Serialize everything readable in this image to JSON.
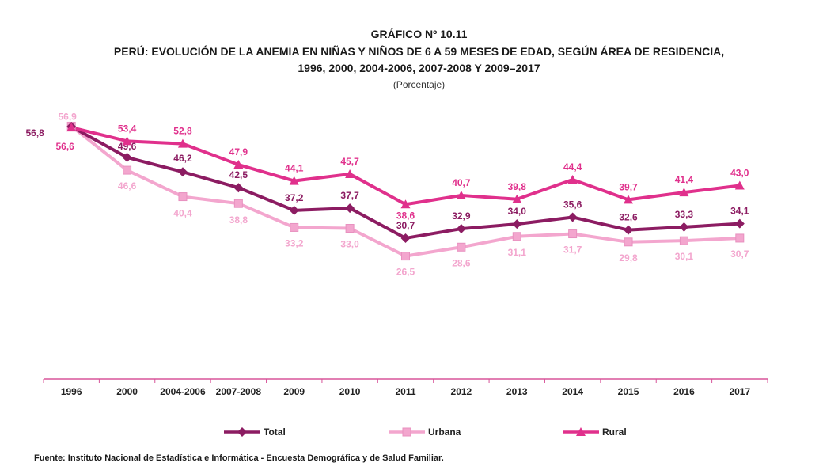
{
  "chart_data": {
    "type": "line",
    "title": "GRÁFICO Nº 10.11",
    "subtitle_line1": "PERÚ: EVOLUCIÓN DE LA ANEMIA EN NIÑAS Y NIÑOS DE 6 A 59 MESES DE EDAD, SEGÚN ÁREA DE RESIDENCIA,",
    "subtitle_line2": "1996, 2000, 2004-2006, 2007-2008 Y 2009–2017",
    "unit": "(Porcentaje)",
    "categories": [
      "1996",
      "2000",
      "2004-2006",
      "2007-2008",
      "2009",
      "2010",
      "2011",
      "2012",
      "2013",
      "2014",
      "2015",
      "2016",
      "2017"
    ],
    "series": [
      {
        "name": "Total",
        "color": "#8c1c62",
        "marker": "diamond",
        "values": [
          56.8,
          49.6,
          46.2,
          42.5,
          37.2,
          37.7,
          30.7,
          32.9,
          34.0,
          35.6,
          32.6,
          33.3,
          34.1
        ],
        "labels": [
          "56,8",
          "49,6",
          "46,2",
          "42,5",
          "37,2",
          "37,7",
          "30,7",
          "32,9",
          "34,0",
          "35,6",
          "32,6",
          "33,3",
          "34,1"
        ]
      },
      {
        "name": "Urbana",
        "color": "#f3a6ce",
        "marker": "square",
        "values": [
          56.9,
          46.6,
          40.4,
          38.8,
          33.2,
          33.0,
          26.5,
          28.6,
          31.1,
          31.7,
          29.8,
          30.1,
          30.7
        ],
        "labels": [
          "56,9",
          "46,6",
          "40,4",
          "38,8",
          "33,2",
          "33,0",
          "26,5",
          "28,6",
          "31,1",
          "31,7",
          "29,8",
          "30,1",
          "30,7"
        ]
      },
      {
        "name": "Rural",
        "color": "#e0308c",
        "marker": "triangle",
        "values": [
          56.6,
          53.4,
          52.8,
          47.9,
          44.1,
          45.7,
          38.6,
          40.7,
          39.8,
          44.4,
          39.7,
          41.4,
          43.0
        ],
        "labels": [
          "56,6",
          "53,4",
          "52,8",
          "47,9",
          "44,1",
          "45,7",
          "38,6",
          "40,7",
          "39,8",
          "44,4",
          "39,7",
          "41,4",
          "43,0"
        ]
      }
    ],
    "legend_position": "bottom",
    "grid": false
  },
  "source": "Fuente: Instituto Nacional de Estadística e Informática - Encuesta Demográfica y de Salud Familiar."
}
